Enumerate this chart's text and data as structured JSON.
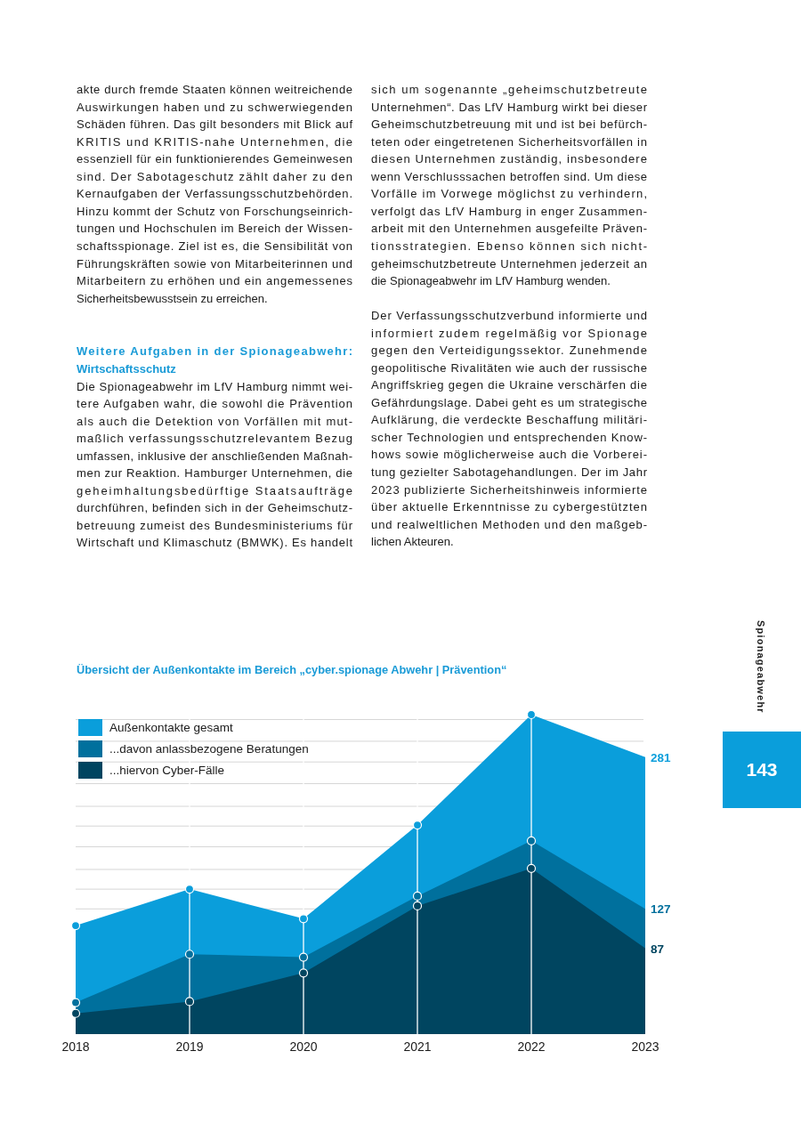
{
  "chart_data": {
    "type": "area",
    "title": "Übersicht der Außenkontakte im Bereich „cyber.spionage Abwehr | Prävention“",
    "categories": [
      "2018",
      "2019",
      "2020",
      "2021",
      "2022",
      "2023"
    ],
    "series": [
      {
        "name": "Außenkontakte gesamt",
        "color": "#0a9edb",
        "values": [
          110,
          147,
          117,
          212,
          324,
          281
        ],
        "value_labels": [
          null,
          null,
          null,
          null,
          null,
          "281"
        ]
      },
      {
        "name": "...davon anlassbezogene Beratungen",
        "color": "#00709d",
        "values": [
          32,
          81,
          78,
          140,
          196,
          127
        ],
        "value_labels": [
          null,
          null,
          null,
          null,
          null,
          "127"
        ]
      },
      {
        "name": "...hiervon Cyber-Fälle",
        "color": "#004560",
        "values": [
          21,
          33,
          62,
          130,
          168,
          87
        ],
        "value_labels": [
          null,
          null,
          null,
          null,
          null,
          "87"
        ]
      }
    ],
    "yticks": [
      {
        "value": 127,
        "label": null
      },
      {
        "value": 147,
        "label": null
      },
      {
        "value": 167,
        "label": null
      },
      {
        "value": 190,
        "label": null
      },
      {
        "value": 211,
        "label": null
      },
      {
        "value": 231,
        "label": null
      },
      {
        "value": 254,
        "label": null
      },
      {
        "value": 276,
        "label": null
      },
      {
        "value": 297,
        "label": null
      },
      {
        "value": 319,
        "label": null
      }
    ],
    "grid": "y",
    "ref_lines": [
      {
        "axis": "x",
        "value": "2019",
        "color": "#ffffff"
      },
      {
        "axis": "x",
        "value": "2020",
        "color": "#ffffff"
      },
      {
        "axis": "x",
        "value": "2021",
        "color": "#ffffff"
      },
      {
        "axis": "x",
        "value": "2022",
        "color": "#ffffff"
      }
    ],
    "legend": "top left",
    "marker": "circle",
    "tick_labels": "x",
    "annotations": [
      "akte durch fremde Staaten können weitreichende\nAuswirkungen haben und zu schwerwiegenden\nSchäden führen. Das gilt besonders mit Blick auf\nKRITIS und KRITIS-nahe Unternehmen, die\nessenziell für ein funktionierendes Gemeinwesen\nsind. Der Sabotageschutz zählt daher zu den\nKernaufgaben der Verfassungsschutzbehörden.\nHinzu kommt der Schutz von Forschungseinrich-\ntungen und Hochschulen im Bereich der Wissen-\nschaftsspionage. Ziel ist es, die Sensibilität von\nFührungskräften sowie von Mitarbeiterinnen und\nMitarbeitern zu erhöhen und ein angemessenes\nSicherheitsbewusstsein zu erreichen.",
      "Weitere Aufgaben in der Spionageabwehr:\nWirtschaftsschutz",
      "Die Spionageabwehr im LfV Hamburg nimmt wei-\ntere Aufgaben wahr, die sowohl die Prävention\nals auch die Detektion von Vorfällen mit mut-\nmaßlich verfassungsschutzrelevantem Bezug\numfassen, inklusive der anschließenden Maßnah-\nmen zur Reaktion. Hamburger Unternehmen, die\ngeheimhaltungsbedürftige Staatsaufträge\ndurchführen, befinden sich in der Geheimschutz-\nbetreuung zumeist des Bundesministeriums für\nWirtschaft und Klimaschutz (BMWK). Es handelt",
      "sich um sogenannte „geheimschutzbetreute\nUnternehmen“. Das LfV Hamburg wirkt bei dieser\nGeheimschutzbetreuung mit und ist bei befürch-\nteten oder eingetretenen Sicherheitsvorfällen in\ndiesen Unternehmen zuständig, insbesondere\nwenn Verschlusssachen betroffen sind. Um diese\nVorfälle im Vorwege möglichst zu verhindern,\nverfolgt das LfV Hamburg in enger Zusammen-\narbeit mit den Unternehmen ausgefeilte Präven-\ntionsstrategien. Ebenso können sich nicht-\ngeheimschutzbetreute Unternehmen jederzeit an\ndie Spionageabwehr im LfV Hamburg wenden.",
      "Der Verfassungsschutzverbund informierte und\ninformiert zudem regelmäßig vor Spionage\ngegen den Verteidigungssektor. Zunehmende\ngeopolitische Rivalitäten wie auch der russische\nAngriffskrieg gegen die Ukraine verschärfen die\nGefährdungslage. Dabei geht es um strategische\nAufklärung, die verdeckte Beschaffung militäri-\nscher Technologien und entsprechenden Know-\nhows sowie möglicherweise auch die Vorberei-\ntung gezielter Sabotagehandlungen. Der im Jahr\n2023 publizierte Sicherheitshinweis informierte\nüber aktuelle Erkenntnisse zu cybergestützten\nund realweltlichen Methoden und den maßgeb-\nlichen Akteuren.",
      "Spionageabwehr",
      "143"
    ]
  }
}
